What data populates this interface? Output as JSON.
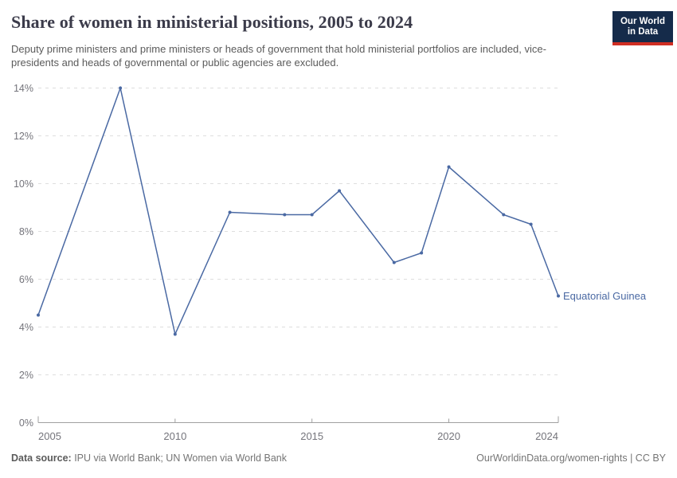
{
  "header": {
    "title": "Share of women in ministerial positions, 2005 to 2024",
    "subtitle": "Deputy prime ministers and prime ministers or heads of government that hold ministerial portfolios are included, vice-presidents and heads of governmental or public agencies are excluded.",
    "logo": {
      "line1": "Our World",
      "line2": "in Data"
    }
  },
  "footer": {
    "source_label": "Data source:",
    "source_text": " IPU via World Bank; UN Women via World Bank",
    "right_text": "OurWorldinData.org/women-rights | CC BY"
  },
  "chart_data": {
    "type": "line",
    "title": "Share of women in ministerial positions, 2005 to 2024",
    "series": [
      {
        "name": "Equatorial Guinea",
        "x": [
          2005,
          2008,
          2010,
          2012,
          2014,
          2015,
          2016,
          2018,
          2019,
          2020,
          2022,
          2023,
          2024
        ],
        "values": [
          4.5,
          14,
          3.7,
          8.8,
          8.7,
          8.7,
          9.7,
          6.7,
          7.1,
          10.7,
          8.7,
          8.3,
          5.3
        ]
      }
    ],
    "unit": "%",
    "xlim": [
      2005,
      2024
    ],
    "ylim": [
      0,
      14
    ],
    "x_ticks": [
      2005,
      2010,
      2015,
      2020,
      2024
    ],
    "y_ticks": [
      0,
      2,
      4,
      6,
      8,
      10,
      12,
      14
    ],
    "y_tick_suffix": "%",
    "grid": "horizontal-dashed",
    "legend_position": "end-of-line-label",
    "line_color": "#4a69a3",
    "grid_color": "#dedede",
    "axis_color": "#a0a0a0",
    "tick_text_color": "#74747b"
  }
}
